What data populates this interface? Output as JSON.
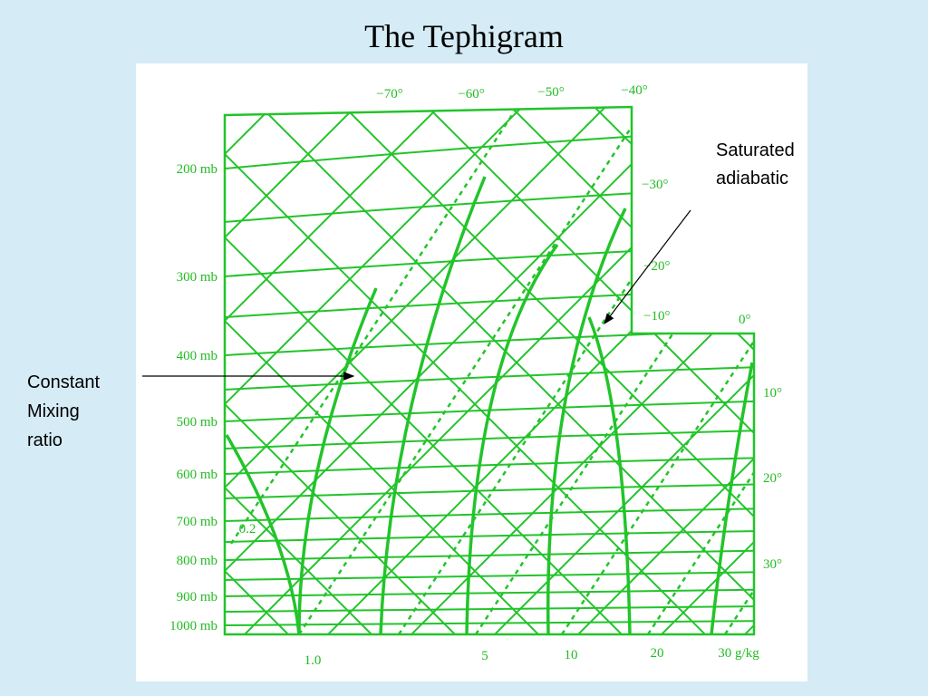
{
  "title": "The Tephigram",
  "annotations": {
    "saturated_adiabatic": [
      "Saturated",
      "adiabatic"
    ],
    "constant_mixing_ratio": [
      "Constant",
      "Mixing",
      "ratio"
    ]
  },
  "pressure_labels": [
    "200 mb",
    "300 mb",
    "400 mb",
    "500 mb",
    "600 mb",
    "700 mb",
    "800 mb",
    "900 mb",
    "1000 mb"
  ],
  "top_temperature_labels": [
    "−70°",
    "−60°",
    "−50°",
    "−40°"
  ],
  "right_temperature_labels": [
    "−30°",
    "−20°",
    "−10°",
    "0°",
    "10°",
    "20°",
    "30°"
  ],
  "mixing_ratio_labels": [
    "0.2",
    "1.0",
    "5",
    "10",
    "20",
    "30 g/kg"
  ]
}
